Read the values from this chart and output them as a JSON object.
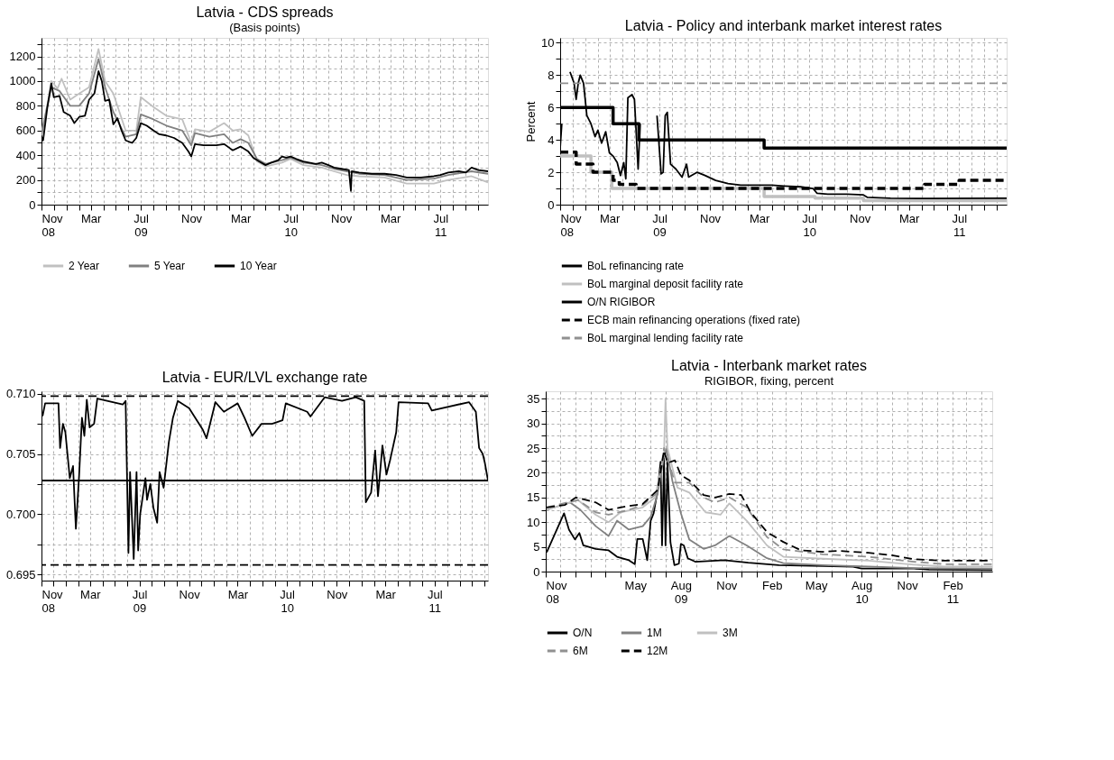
{
  "chart_data": [
    {
      "type": "line",
      "title": "Latvia - CDS spreads",
      "subtitle": "(Basis points)",
      "legend": "bottom",
      "grid": true,
      "line_style": "solid",
      "xlim": [
        "2008-11-01",
        "2011-10-25"
      ],
      "xticks": [
        {
          "value": "2008-11-01",
          "label": "Nov\n08"
        },
        {
          "value": "2008-12-01",
          "label": null
        },
        {
          "value": "2009-01-01",
          "label": null
        },
        {
          "value": "2009-02-01",
          "label": null
        },
        {
          "value": "2009-03-01",
          "label": "Mar"
        },
        {
          "value": "2009-04-01",
          "label": null
        },
        {
          "value": "2009-05-01",
          "label": null
        },
        {
          "value": "2009-06-01",
          "label": null
        },
        {
          "value": "2009-07-01",
          "label": "Jul\n09"
        },
        {
          "value": "2009-08-01",
          "label": null
        },
        {
          "value": "2009-09-01",
          "label": null
        },
        {
          "value": "2009-10-01",
          "label": null
        },
        {
          "value": "2009-11-01",
          "label": "Nov"
        },
        {
          "value": "2009-12-01",
          "label": null
        },
        {
          "value": "2010-01-01",
          "label": null
        },
        {
          "value": "2010-02-01",
          "label": null
        },
        {
          "value": "2010-03-01",
          "label": "Mar"
        },
        {
          "value": "2010-04-01",
          "label": null
        },
        {
          "value": "2010-05-01",
          "label": null
        },
        {
          "value": "2010-06-01",
          "label": null
        },
        {
          "value": "2010-07-01",
          "label": "Jul\n10"
        },
        {
          "value": "2010-08-01",
          "label": null
        },
        {
          "value": "2010-09-01",
          "label": null
        },
        {
          "value": "2010-10-01",
          "label": null
        },
        {
          "value": "2010-11-01",
          "label": "Nov"
        },
        {
          "value": "2010-12-01",
          "label": null
        },
        {
          "value": "2011-01-01",
          "label": null
        },
        {
          "value": "2011-02-01",
          "label": null
        },
        {
          "value": "2011-03-01",
          "label": "Mar"
        },
        {
          "value": "2011-04-01",
          "label": null
        },
        {
          "value": "2011-05-01",
          "label": null
        },
        {
          "value": "2011-06-01",
          "label": null
        },
        {
          "value": "2011-07-01",
          "label": "Jul\n11"
        },
        {
          "value": "2011-08-01",
          "label": null
        },
        {
          "value": "2011-09-01",
          "label": null
        },
        {
          "value": "2011-10-01",
          "label": null
        }
      ],
      "ylim": [
        0,
        1350
      ],
      "yticks": [
        0,
        {
          "value": 100,
          "label": null
        },
        200,
        {
          "value": 300,
          "label": null
        },
        400,
        {
          "value": 500,
          "label": null
        },
        600,
        {
          "value": 700,
          "label": null
        },
        800,
        {
          "value": 900,
          "label": null
        },
        1000,
        {
          "value": 1100,
          "label": null
        },
        1200,
        {
          "value": 1300,
          "label": null
        }
      ],
      "series": [
        {
          "name": "2 Year",
          "color": "#c0c0c0",
          "x": [
            "2008-11-01",
            "2008-11-15",
            "2008-11-25",
            "2008-12-10",
            "2008-12-20",
            "2009-01-10",
            "2009-02-01",
            "2009-02-25",
            "2009-03-20",
            "2009-04-05",
            "2009-04-25",
            "2009-05-25",
            "2009-06-20",
            "2009-07-01",
            "2009-08-01",
            "2009-09-01",
            "2009-10-10",
            "2009-11-01",
            "2009-11-10",
            "2009-12-15",
            "2010-01-20",
            "2010-02-10",
            "2010-03-01",
            "2010-03-20",
            "2010-04-10",
            "2010-05-01",
            "2010-06-10",
            "2010-07-01",
            "2010-08-01",
            "2010-09-15",
            "2010-10-15",
            "2010-11-15",
            "2010-12-15",
            "2011-02-15",
            "2011-04-10",
            "2011-06-15",
            "2011-07-20",
            "2011-09-15",
            "2011-10-25"
          ],
          "values": [
            580,
            800,
            1000,
            940,
            1020,
            850,
            900,
            950,
            1260,
            1000,
            900,
            600,
            600,
            870,
            790,
            720,
            690,
            500,
            610,
            590,
            660,
            600,
            610,
            560,
            350,
            310,
            340,
            370,
            320,
            300,
            270,
            240,
            230,
            220,
            170,
            170,
            200,
            230,
            180
          ]
        },
        {
          "name": "5 Year",
          "color": "#808080",
          "x": [
            "2008-11-01",
            "2008-11-15",
            "2008-11-25",
            "2008-12-15",
            "2009-01-10",
            "2009-02-01",
            "2009-02-25",
            "2009-03-20",
            "2009-04-05",
            "2009-04-25",
            "2009-05-25",
            "2009-06-20",
            "2009-07-01",
            "2009-08-01",
            "2009-09-01",
            "2009-10-10",
            "2009-11-01",
            "2009-11-10",
            "2009-12-15",
            "2010-01-20",
            "2010-02-10",
            "2010-03-01",
            "2010-03-20",
            "2010-04-10",
            "2010-05-01",
            "2010-06-10",
            "2010-07-01",
            "2010-08-01",
            "2010-09-15",
            "2010-10-15",
            "2010-11-15",
            "2010-12-15",
            "2011-02-15",
            "2011-04-10",
            "2011-06-15",
            "2011-07-20",
            "2011-09-15",
            "2011-10-25"
          ],
          "values": [
            560,
            800,
            950,
            920,
            800,
            800,
            900,
            1180,
            950,
            750,
            550,
            570,
            730,
            690,
            640,
            600,
            480,
            580,
            550,
            570,
            500,
            530,
            500,
            370,
            330,
            360,
            380,
            340,
            320,
            290,
            270,
            250,
            240,
            200,
            210,
            240,
            270,
            250
          ]
        },
        {
          "name": "10 Year",
          "color": "#000000",
          "x": [
            "2008-11-01",
            "2008-11-05",
            "2008-11-15",
            "2008-11-25",
            "2008-12-01",
            "2008-12-15",
            "2008-12-25",
            "2009-01-10",
            "2009-01-20",
            "2009-02-01",
            "2009-02-15",
            "2009-02-25",
            "2009-03-10",
            "2009-03-20",
            "2009-03-28",
            "2009-04-05",
            "2009-04-15",
            "2009-04-25",
            "2009-05-05",
            "2009-05-15",
            "2009-05-25",
            "2009-06-10",
            "2009-06-20",
            "2009-07-01",
            "2009-07-15",
            "2009-08-01",
            "2009-08-15",
            "2009-09-01",
            "2009-09-20",
            "2009-10-10",
            "2009-10-25",
            "2009-11-01",
            "2009-11-10",
            "2009-12-01",
            "2010-01-01",
            "2010-01-20",
            "2010-02-10",
            "2010-03-01",
            "2010-03-20",
            "2010-04-01",
            "2010-04-15",
            "2010-05-01",
            "2010-05-15",
            "2010-06-01",
            "2010-06-10",
            "2010-06-20",
            "2010-07-01",
            "2010-07-15",
            "2010-08-01",
            "2010-09-01",
            "2010-09-15",
            "2010-10-01",
            "2010-10-15",
            "2010-11-01",
            "2010-11-20",
            "2010-11-25",
            "2010-11-27",
            "2010-12-15",
            "2011-01-15",
            "2011-02-15",
            "2011-03-15",
            "2011-04-10",
            "2011-05-15",
            "2011-06-15",
            "2011-07-01",
            "2011-07-20",
            "2011-08-15",
            "2011-09-01",
            "2011-09-15",
            "2011-10-01",
            "2011-10-25"
          ],
          "values": [
            550,
            520,
            780,
            980,
            870,
            880,
            750,
            720,
            660,
            710,
            720,
            850,
            900,
            1080,
            1000,
            840,
            850,
            650,
            700,
            600,
            520,
            500,
            540,
            660,
            640,
            600,
            570,
            560,
            540,
            500,
            430,
            390,
            490,
            480,
            480,
            490,
            440,
            470,
            430,
            380,
            350,
            320,
            340,
            360,
            390,
            380,
            390,
            370,
            350,
            330,
            340,
            320,
            300,
            290,
            280,
            110,
            270,
            260,
            250,
            250,
            240,
            220,
            220,
            230,
            240,
            260,
            270,
            260,
            300,
            280,
            270
          ]
        }
      ]
    },
    {
      "type": "line",
      "title": "Latvia - Policy and interbank market interest rates",
      "ylabel": "Percent",
      "legend": "bottom",
      "grid": true,
      "xlim": [
        "2008-11-01",
        "2011-10-25"
      ],
      "xticks": [
        {
          "value": "2008-11-01",
          "label": "Nov\n08"
        },
        {
          "value": "2008-12-01",
          "label": null
        },
        {
          "value": "2009-01-01",
          "label": null
        },
        {
          "value": "2009-02-01",
          "label": null
        },
        {
          "value": "2009-03-01",
          "label": "Mar"
        },
        {
          "value": "2009-04-01",
          "label": null
        },
        {
          "value": "2009-05-01",
          "label": null
        },
        {
          "value": "2009-06-01",
          "label": null
        },
        {
          "value": "2009-07-01",
          "label": "Jul\n09"
        },
        {
          "value": "2009-08-01",
          "label": null
        },
        {
          "value": "2009-09-01",
          "label": null
        },
        {
          "value": "2009-10-01",
          "label": null
        },
        {
          "value": "2009-11-01",
          "label": "Nov"
        },
        {
          "value": "2009-12-01",
          "label": null
        },
        {
          "value": "2010-01-01",
          "label": null
        },
        {
          "value": "2010-02-01",
          "label": null
        },
        {
          "value": "2010-03-01",
          "label": "Mar"
        },
        {
          "value": "2010-04-01",
          "label": null
        },
        {
          "value": "2010-05-01",
          "label": null
        },
        {
          "value": "2010-06-01",
          "label": null
        },
        {
          "value": "2010-07-01",
          "label": "Jul\n10"
        },
        {
          "value": "2010-08-01",
          "label": null
        },
        {
          "value": "2010-09-01",
          "label": null
        },
        {
          "value": "2010-10-01",
          "label": null
        },
        {
          "value": "2010-11-01",
          "label": "Nov"
        },
        {
          "value": "2010-12-01",
          "label": null
        },
        {
          "value": "2011-01-01",
          "label": null
        },
        {
          "value": "2011-02-01",
          "label": null
        },
        {
          "value": "2011-03-01",
          "label": "Mar"
        },
        {
          "value": "2011-04-01",
          "label": null
        },
        {
          "value": "2011-05-01",
          "label": null
        },
        {
          "value": "2011-06-01",
          "label": null
        },
        {
          "value": "2011-07-01",
          "label": "Jul\n11"
        },
        {
          "value": "2011-08-01",
          "label": null
        },
        {
          "value": "2011-09-01",
          "label": null
        },
        {
          "value": "2011-10-01",
          "label": null
        }
      ],
      "ylim": [
        0,
        10.3
      ],
      "yticks": [
        0,
        {
          "value": 1,
          "label": null
        },
        2,
        {
          "value": 3,
          "label": null
        },
        4,
        {
          "value": 5,
          "label": null
        },
        6,
        {
          "value": 7,
          "label": null
        },
        8,
        {
          "value": 9,
          "label": null
        },
        10
      ],
      "series": [
        {
          "name": "BoL refinancing rate",
          "type": "step",
          "color": "#000000",
          "line_style": "solid",
          "x": [
            "2008-11-01",
            "2009-03-10",
            "2009-05-12",
            "2010-03-13",
            "2011-10-25"
          ],
          "values": [
            6,
            5,
            4,
            3.5,
            3.5
          ]
        },
        {
          "name": "BoL marginal deposit facility rate",
          "type": "step",
          "color": "#c0c0c0",
          "line_style": "solid",
          "x": [
            "2008-11-01",
            "2009-01-15",
            "2009-03-07",
            "2010-03-13",
            "2010-07-15",
            "2010-11-10",
            "2011-10-25"
          ],
          "values": [
            3,
            2,
            1,
            0.5,
            0.4,
            0.25,
            0.25
          ]
        },
        {
          "name": "O/N RIGIBOR",
          "type": "line",
          "color": "#000000",
          "line_style": "solid",
          "x": [
            "2008-11-01",
            "2008-11-05",
            "2008-11-10",
            "2008-11-20",
            "2008-11-25",
            "2008-12-05",
            "2008-12-10",
            "2008-12-15",
            "2008-12-20",
            "2008-12-28",
            "2009-01-05",
            "2009-01-15",
            "2009-01-25",
            "2009-02-01",
            "2009-02-10",
            "2009-02-20",
            "2009-03-01",
            "2009-03-10",
            "2009-03-20",
            "2009-03-28",
            "2009-04-05",
            "2009-04-10",
            "2009-04-15",
            "2009-04-25",
            "2009-05-01",
            "2009-05-10",
            "2009-05-15",
            "2009-05-20",
            "2009-06-05",
            "2009-06-07",
            "2009-06-10",
            "2009-06-20",
            "2009-06-25",
            "2009-07-05",
            "2009-07-10",
            "2009-07-15",
            "2009-07-20",
            "2009-07-28",
            "2009-08-10",
            "2009-08-25",
            "2009-09-05",
            "2009-09-10",
            "2009-10-01",
            "2009-10-20",
            "2009-11-15",
            "2009-12-15",
            "2010-01-15",
            "2010-03-01",
            "2010-04-01",
            "2010-05-01",
            "2010-06-10",
            "2010-07-10",
            "2010-07-20",
            "2010-08-15",
            "2010-10-01",
            "2010-11-10",
            "2010-11-20",
            "2011-01-15",
            "2011-04-15",
            "2011-10-25"
          ],
          "values": [
            3.5,
            5,
            null,
            null,
            8.2,
            7.5,
            6.5,
            7.5,
            8,
            7.5,
            5.5,
            5,
            4.2,
            4.6,
            3.8,
            4.5,
            3.2,
            3,
            2.6,
            1.8,
            2.6,
            1.6,
            6.6,
            6.8,
            6.5,
            2.2,
            5,
            null,
            null,
            null,
            null,
            null,
            5.5,
            1.9,
            2,
            5.5,
            5.7,
            2.5,
            2.2,
            1.7,
            2.5,
            1.7,
            2,
            1.8,
            1.5,
            1.3,
            1.2,
            1.2,
            1.2,
            1.15,
            1.1,
            1,
            0.7,
            0.65,
            0.65,
            0.6,
            0.45,
            0.4,
            0.38,
            0.4
          ]
        },
        {
          "name": "ECB main refinancing operations (fixed rate)",
          "type": "step",
          "color": "#000000",
          "line_style": "dashed",
          "x": [
            "2008-11-01",
            "2008-12-10",
            "2009-01-20",
            "2009-03-10",
            "2009-03-25",
            "2009-05-05",
            "2011-04-08",
            "2011-07-01",
            "2011-10-25"
          ],
          "values": [
            3.25,
            2.5,
            2,
            1.5,
            1.25,
            1,
            1.25,
            1.5,
            1.5
          ]
        },
        {
          "name": "BoL marginal lending facility rate",
          "type": "line",
          "color": "#909090",
          "line_style": "dashed",
          "x": [
            "2008-11-01",
            "2011-10-25"
          ],
          "values": [
            7.5,
            7.5
          ]
        }
      ]
    },
    {
      "type": "line",
      "title": "Latvia - EUR/LVL exchange rate",
      "legend": false,
      "grid": true,
      "line_style": "solid",
      "xlim": [
        "2008-11-01",
        "2011-11-10"
      ],
      "xticks": [
        {
          "value": "2008-11-01",
          "label": "Nov\n08"
        },
        {
          "value": "2008-12-01",
          "label": null
        },
        {
          "value": "2009-01-01",
          "label": null
        },
        {
          "value": "2009-02-01",
          "label": null
        },
        {
          "value": "2009-03-01",
          "label": "Mar"
        },
        {
          "value": "2009-04-01",
          "label": null
        },
        {
          "value": "2009-05-01",
          "label": null
        },
        {
          "value": "2009-06-01",
          "label": null
        },
        {
          "value": "2009-07-01",
          "label": "Jul\n09"
        },
        {
          "value": "2009-08-01",
          "label": null
        },
        {
          "value": "2009-09-01",
          "label": null
        },
        {
          "value": "2009-10-01",
          "label": null
        },
        {
          "value": "2009-11-01",
          "label": "Nov"
        },
        {
          "value": "2009-12-01",
          "label": null
        },
        {
          "value": "2010-01-01",
          "label": null
        },
        {
          "value": "2010-02-01",
          "label": null
        },
        {
          "value": "2010-03-01",
          "label": "Mar"
        },
        {
          "value": "2010-04-01",
          "label": null
        },
        {
          "value": "2010-05-01",
          "label": null
        },
        {
          "value": "2010-06-01",
          "label": null
        },
        {
          "value": "2010-07-01",
          "label": "Jul\n10"
        },
        {
          "value": "2010-08-01",
          "label": null
        },
        {
          "value": "2010-09-01",
          "label": null
        },
        {
          "value": "2010-10-01",
          "label": null
        },
        {
          "value": "2010-11-01",
          "label": "Nov"
        },
        {
          "value": "2010-12-01",
          "label": null
        },
        {
          "value": "2011-01-01",
          "label": null
        },
        {
          "value": "2011-02-01",
          "label": null
        },
        {
          "value": "2011-03-01",
          "label": "Mar"
        },
        {
          "value": "2011-04-01",
          "label": null
        },
        {
          "value": "2011-05-01",
          "label": null
        },
        {
          "value": "2011-06-01",
          "label": null
        },
        {
          "value": "2011-07-01",
          "label": "Jul\n11"
        },
        {
          "value": "2011-08-01",
          "label": null
        },
        {
          "value": "2011-09-01",
          "label": null
        },
        {
          "value": "2011-10-01",
          "label": null
        },
        {
          "value": "2011-11-01",
          "label": null
        }
      ],
      "ylim": [
        0.6945,
        0.7102
      ],
      "yticks": [
        0.695,
        {
          "value": 0.6975,
          "label": null
        },
        {
          "value": 0.7,
          "label": "0.700"
        },
        {
          "value": 0.7025,
          "label": null
        },
        0.705,
        {
          "value": 0.7075,
          "label": null
        },
        {
          "value": 0.71,
          "label": "0.710"
        }
      ],
      "ref_lines": [
        {
          "axis": "y",
          "value": 0.7098,
          "color": "#000000",
          "line_style": "dashed"
        },
        {
          "axis": "y",
          "value": 0.6958,
          "color": "#000000",
          "line_style": "dashed"
        },
        {
          "axis": "y",
          "value": 0.7028,
          "color": "#000000",
          "line_style": "solid"
        }
      ],
      "series": [
        {
          "color": "#000000",
          "x": [
            "2008-11-01",
            "2008-11-04",
            "2008-11-10",
            "2008-12-13",
            "2008-12-17",
            "2008-12-24",
            "2008-12-30",
            "2009-01-10",
            "2009-01-18",
            "2009-01-25",
            "2009-02-02",
            "2009-02-09",
            "2009-02-15",
            "2009-02-21",
            "2009-02-28",
            "2009-03-11",
            "2009-03-19",
            "2009-05-21",
            "2009-05-28",
            "2009-06-04",
            "2009-06-08",
            "2009-06-17",
            "2009-06-24",
            "2009-06-28",
            "2009-07-03",
            "2009-07-16",
            "2009-07-20",
            "2009-07-28",
            "2009-08-05",
            "2009-08-14",
            "2009-08-20",
            "2009-08-30",
            "2009-09-12",
            "2009-09-22",
            "2009-10-04",
            "2009-11-01",
            "2009-12-05",
            "2009-12-14",
            "2010-01-05",
            "2010-01-26",
            "2010-03-01",
            "2010-03-18",
            "2010-04-06",
            "2010-04-29",
            "2010-05-25",
            "2010-06-20",
            "2010-06-28",
            "2010-08-20",
            "2010-08-28",
            "2010-10-02",
            "2010-11-14",
            "2010-12-18",
            "2011-01-08",
            "2011-01-12",
            "2011-01-25",
            "2011-02-04",
            "2011-02-11",
            "2011-02-22",
            "2011-03-04",
            "2011-03-13",
            "2011-03-28",
            "2011-04-03",
            "2011-06-15",
            "2011-06-24",
            "2011-09-24",
            "2011-10-11",
            "2011-10-19",
            "2011-10-28",
            "2011-11-02",
            "2011-11-10"
          ],
          "values": [
            0.7082,
            0.7082,
            0.7092,
            0.7092,
            0.7055,
            0.7075,
            0.7068,
            0.703,
            0.704,
            0.6988,
            0.7032,
            0.708,
            0.7065,
            0.7095,
            0.7072,
            0.7075,
            0.7096,
            0.7091,
            0.7094,
            0.6968,
            0.7035,
            0.6963,
            0.7035,
            0.697,
            0.7,
            0.703,
            0.7012,
            0.7025,
            0.7005,
            0.6993,
            0.7035,
            0.7022,
            0.706,
            0.708,
            0.7094,
            0.7088,
            0.707,
            0.7063,
            0.7093,
            0.7085,
            0.7092,
            0.708,
            0.7065,
            0.7075,
            0.7075,
            0.7078,
            0.7092,
            0.7085,
            0.7081,
            0.7097,
            0.7094,
            0.7097,
            0.7094,
            0.701,
            0.7018,
            0.7053,
            0.7015,
            0.7057,
            0.7033,
            0.7045,
            0.7068,
            0.7093,
            0.7092,
            0.7086,
            0.7093,
            0.7085,
            0.7055,
            0.705,
            0.7043,
            0.7028
          ]
        }
      ]
    },
    {
      "type": "line",
      "title": "Latvia - Interbank market rates",
      "subtitle": "RIGIBOR, fixing, percent",
      "legend": "bottom",
      "grid": true,
      "xlim": [
        "2008-11-01",
        "2011-04-22"
      ],
      "xticks": [
        {
          "value": "2008-11-01",
          "label": "Nov\n08"
        },
        {
          "value": "2008-12-01",
          "label": null
        },
        {
          "value": "2009-01-01",
          "label": null
        },
        {
          "value": "2009-02-01",
          "label": null
        },
        {
          "value": "2009-03-01",
          "label": null
        },
        {
          "value": "2009-04-01",
          "label": null
        },
        {
          "value": "2009-05-01",
          "label": "May"
        },
        {
          "value": "2009-06-01",
          "label": null
        },
        {
          "value": "2009-07-01",
          "label": null
        },
        {
          "value": "2009-08-01",
          "label": "Aug\n09"
        },
        {
          "value": "2009-09-01",
          "label": null
        },
        {
          "value": "2009-10-01",
          "label": null
        },
        {
          "value": "2009-11-01",
          "label": "Nov"
        },
        {
          "value": "2009-12-01",
          "label": null
        },
        {
          "value": "2010-01-01",
          "label": null
        },
        {
          "value": "2010-02-01",
          "label": "Feb"
        },
        {
          "value": "2010-03-01",
          "label": null
        },
        {
          "value": "2010-04-01",
          "label": null
        },
        {
          "value": "2010-05-01",
          "label": "May"
        },
        {
          "value": "2010-06-01",
          "label": null
        },
        {
          "value": "2010-07-01",
          "label": null
        },
        {
          "value": "2010-08-01",
          "label": "Aug\n10"
        },
        {
          "value": "2010-09-01",
          "label": null
        },
        {
          "value": "2010-10-01",
          "label": null
        },
        {
          "value": "2010-11-01",
          "label": "Nov"
        },
        {
          "value": "2010-12-01",
          "label": null
        },
        {
          "value": "2011-01-01",
          "label": null
        },
        {
          "value": "2011-02-01",
          "label": "Feb\n11"
        },
        {
          "value": "2011-03-01",
          "label": null
        },
        {
          "value": "2011-04-01",
          "label": null
        }
      ],
      "ylim": [
        0,
        36.5
      ],
      "yticks": [
        0,
        {
          "value": 2.5,
          "label": null
        },
        5,
        {
          "value": 7.5,
          "label": null
        },
        10,
        {
          "value": 12.5,
          "label": null
        },
        15,
        {
          "value": 17.5,
          "label": null
        },
        20,
        {
          "value": 22.5,
          "label": null
        },
        25,
        {
          "value": 27.5,
          "label": null
        },
        30,
        {
          "value": 32.5,
          "label": null
        },
        35
      ],
      "series": [
        {
          "name": "O/N",
          "color": "#000000",
          "line_style": "solid",
          "x": [
            "2008-11-03",
            "2008-12-08",
            "2008-12-18",
            "2008-12-30",
            "2009-01-08",
            "2009-01-16",
            "2009-02-10",
            "2009-03-08",
            "2009-03-25",
            "2009-04-18",
            "2009-04-30",
            "2009-05-05",
            "2009-05-16",
            "2009-05-25",
            "2009-06-01",
            "2009-06-07",
            "2009-06-15",
            "2009-06-21",
            "2009-06-24",
            "2009-06-28",
            "2009-07-01",
            "2009-07-05",
            "2009-07-11",
            "2009-07-19",
            "2009-07-28",
            "2009-08-01",
            "2009-08-07",
            "2009-08-15",
            "2009-08-30",
            "2009-10-28",
            "2009-12-15",
            "2010-02-15",
            "2010-05-15",
            "2010-07-15",
            "2010-08-01",
            "2010-11-15",
            "2010-12-15",
            "2011-04-22"
          ],
          "values": [
            3.9,
            11.8,
            8.5,
            6.5,
            7.8,
            5.3,
            4.6,
            4.3,
            3,
            2.3,
            1.5,
            6.6,
            6.6,
            2.3,
            10.3,
            11.8,
            16.3,
            22.2,
            5.3,
            22.9,
            5.3,
            22.2,
            5.9,
            1.3,
            1.6,
            5.6,
            5.3,
            2.7,
            2,
            2.3,
            1.8,
            1.3,
            1.1,
            1,
            0.6,
            0.6,
            0.4,
            0.3
          ]
        },
        {
          "name": "1M",
          "color": "#808080",
          "line_style": "solid",
          "x": [
            "2008-11-03",
            "2008-12-20",
            "2009-01-10",
            "2009-02-10",
            "2009-03-08",
            "2009-03-25",
            "2009-04-18",
            "2009-05-16",
            "2009-06-01",
            "2009-06-15",
            "2009-06-27",
            "2009-07-03",
            "2009-07-15",
            "2009-08-01",
            "2009-08-18",
            "2009-09-16",
            "2009-10-09",
            "2009-11-07",
            "2009-12-12",
            "2010-01-22",
            "2010-02-24",
            "2010-05-15",
            "2010-08-15",
            "2010-11-15",
            "2011-04-22"
          ],
          "values": [
            12.5,
            14,
            12.5,
            9.2,
            7.2,
            10.3,
            8.5,
            9.2,
            11.1,
            15.7,
            22.9,
            24.8,
            18.3,
            11.8,
            6.5,
            4.6,
            5.3,
            7.2,
            5.3,
            2.7,
            1.7,
            1.3,
            1,
            0.7,
            0.6
          ]
        },
        {
          "name": "3M",
          "color": "#c0c0c0",
          "line_style": "solid",
          "x": [
            "2008-11-03",
            "2009-01-05",
            "2009-02-10",
            "2009-03-08",
            "2009-04-01",
            "2009-05-16",
            "2009-06-10",
            "2009-06-28",
            "2009-07-01",
            "2009-07-05",
            "2009-07-25",
            "2009-08-18",
            "2009-09-20",
            "2009-10-20",
            "2009-11-07",
            "2009-12-12",
            "2010-01-22",
            "2010-02-24",
            "2010-05-15",
            "2010-08-15",
            "2010-11-15",
            "2011-01-15",
            "2011-04-22"
          ],
          "values": [
            12.5,
            14.5,
            11.5,
            10,
            12,
            13,
            15,
            24,
            35,
            25,
            17,
            16,
            12,
            11.5,
            13.8,
            10.3,
            5.3,
            3,
            2.6,
            2.2,
            1.4,
            1,
            1
          ]
        },
        {
          "name": "6M",
          "color": "#909090",
          "line_style": "dashed",
          "x": [
            "2008-11-03",
            "2009-01-05",
            "2009-02-10",
            "2009-03-08",
            "2009-04-18",
            "2009-05-16",
            "2009-06-15",
            "2009-06-28",
            "2009-07-05",
            "2009-07-20",
            "2009-08-18",
            "2009-09-16",
            "2009-10-09",
            "2009-11-07",
            "2009-12-12",
            "2010-01-22",
            "2010-02-24",
            "2010-05-15",
            "2010-08-15",
            "2010-11-15",
            "2011-01-15",
            "2011-04-22"
          ],
          "values": [
            13,
            14.5,
            12,
            11.5,
            12.5,
            13.5,
            16,
            25,
            23,
            18,
            18,
            15,
            14,
            15,
            13,
            7,
            4.5,
            3.5,
            3,
            2,
            1.5,
            1.5
          ]
        },
        {
          "name": "12M",
          "color": "#000000",
          "line_style": "dashed",
          "x": [
            "2008-11-03",
            "2008-12-10",
            "2009-01-01",
            "2009-02-10",
            "2009-03-08",
            "2009-04-01",
            "2009-05-16",
            "2009-06-15",
            "2009-06-28",
            "2009-07-05",
            "2009-07-20",
            "2009-08-01",
            "2009-08-18",
            "2009-09-16",
            "2009-10-09",
            "2009-11-07",
            "2009-12-01",
            "2009-12-20",
            "2010-01-22",
            "2010-02-24",
            "2010-04-01",
            "2010-05-15",
            "2010-06-15",
            "2010-08-15",
            "2010-10-01",
            "2010-11-15",
            "2011-01-15",
            "2011-04-22"
          ],
          "values": [
            13,
            13.5,
            15,
            14,
            12.5,
            13,
            13.7,
            16.5,
            24.5,
            22,
            22.5,
            19.5,
            18.5,
            15.5,
            15,
            15.7,
            15.5,
            12,
            8,
            6,
            4.3,
            4,
            4.2,
            3.8,
            3.3,
            2.5,
            2.2,
            2.2
          ]
        }
      ]
    }
  ]
}
